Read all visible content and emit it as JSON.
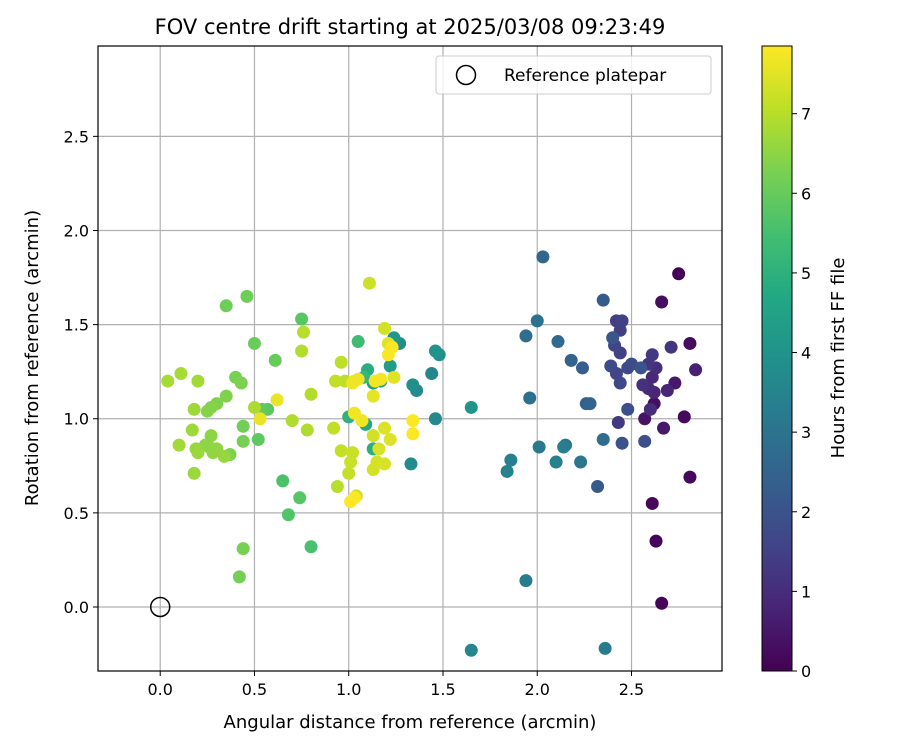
{
  "chart_data": {
    "type": "scatter",
    "title": "FOV centre drift starting at 2025/03/08 09:23:49",
    "xlabel": "Angular distance from reference (arcmin)",
    "ylabel": "Rotation from reference (arcmin)",
    "xlim": [
      -0.33,
      2.98
    ],
    "ylim": [
      -0.34,
      2.98
    ],
    "xticks": [
      0.0,
      0.5,
      1.0,
      1.5,
      2.0,
      2.5
    ],
    "xtick_labels": [
      "0.0",
      "0.5",
      "1.0",
      "1.5",
      "2.0",
      "2.5"
    ],
    "yticks": [
      0.0,
      0.5,
      1.0,
      1.5,
      2.0,
      2.5
    ],
    "ytick_labels": [
      "0.0",
      "0.5",
      "1.0",
      "1.5",
      "2.0",
      "2.5"
    ],
    "grid": true,
    "legend": {
      "position": "top-right",
      "label": "Reference platepar"
    },
    "reference_point": {
      "x": 0.0,
      "y": 0.0
    },
    "colorbar": {
      "label": "Hours from first FF file",
      "range": [
        0,
        7.85
      ],
      "ticks": [
        0,
        1,
        2,
        3,
        4,
        5,
        6,
        7
      ],
      "tick_labels": [
        "0",
        "1",
        "2",
        "3",
        "4",
        "5",
        "6",
        "7"
      ],
      "colormap": "viridis"
    },
    "points": [
      [
        2.75,
        1.77,
        0.05
      ],
      [
        2.63,
        0.35,
        0.1
      ],
      [
        2.66,
        0.02,
        0.1
      ],
      [
        2.61,
        0.55,
        0.15
      ],
      [
        2.81,
        0.69,
        0.15
      ],
      [
        2.78,
        1.01,
        0.2
      ],
      [
        2.81,
        1.4,
        0.25
      ],
      [
        2.66,
        1.62,
        0.3
      ],
      [
        2.62,
        1.08,
        0.3
      ],
      [
        2.57,
        1.0,
        0.4
      ],
      [
        2.73,
        1.19,
        0.5
      ],
      [
        2.67,
        0.95,
        0.5
      ],
      [
        2.84,
        1.26,
        0.7
      ],
      [
        2.69,
        1.15,
        0.8
      ],
      [
        2.62,
        1.14,
        0.8
      ],
      [
        2.61,
        1.22,
        0.9
      ],
      [
        2.59,
        1.16,
        0.9
      ],
      [
        2.6,
        1.05,
        1.0
      ],
      [
        2.63,
        1.27,
        1.0
      ],
      [
        2.56,
        1.18,
        1.1
      ],
      [
        2.59,
        1.29,
        1.2
      ],
      [
        2.71,
        1.38,
        1.2
      ],
      [
        2.61,
        1.34,
        1.3
      ],
      [
        2.43,
        0.98,
        1.3
      ],
      [
        2.42,
        1.52,
        1.4
      ],
      [
        2.44,
        1.47,
        1.45
      ],
      [
        2.45,
        1.52,
        1.5
      ],
      [
        2.44,
        1.35,
        1.5
      ],
      [
        2.41,
        1.39,
        1.6
      ],
      [
        2.42,
        1.24,
        1.6
      ],
      [
        2.44,
        1.19,
        1.7
      ],
      [
        2.48,
        1.27,
        1.7
      ],
      [
        2.5,
        1.29,
        1.8
      ],
      [
        2.39,
        1.28,
        1.8
      ],
      [
        2.48,
        1.05,
        1.9
      ],
      [
        2.57,
        0.88,
        1.9
      ],
      [
        2.55,
        1.27,
        2.0
      ],
      [
        2.45,
        0.87,
        2.0
      ],
      [
        2.4,
        1.43,
        2.1
      ],
      [
        2.35,
        1.63,
        2.2
      ],
      [
        2.32,
        0.64,
        2.2
      ],
      [
        2.24,
        1.27,
        2.3
      ],
      [
        2.26,
        1.08,
        2.4
      ],
      [
        2.28,
        1.08,
        2.5
      ],
      [
        2.18,
        1.31,
        2.5
      ],
      [
        2.03,
        1.86,
        2.6
      ],
      [
        2.11,
        1.41,
        2.7
      ],
      [
        1.94,
        1.44,
        2.8
      ],
      [
        2.35,
        0.89,
        2.8
      ],
      [
        1.96,
        1.11,
        2.9
      ],
      [
        2.0,
        1.52,
        3.0
      ],
      [
        2.15,
        0.86,
        3.05
      ],
      [
        2.23,
        0.77,
        3.1
      ],
      [
        2.01,
        0.85,
        3.15
      ],
      [
        2.36,
        -0.22,
        3.2
      ],
      [
        1.94,
        0.14,
        3.25
      ],
      [
        2.14,
        0.85,
        3.3
      ],
      [
        1.86,
        0.78,
        3.35
      ],
      [
        2.1,
        0.77,
        3.4
      ],
      [
        1.84,
        0.72,
        3.5
      ],
      [
        1.65,
        -0.23,
        3.6
      ],
      [
        1.44,
        1.24,
        3.6
      ],
      [
        1.46,
        1.0,
        3.65
      ],
      [
        1.36,
        1.15,
        3.7
      ],
      [
        1.33,
        0.76,
        3.75
      ],
      [
        1.27,
        1.4,
        3.8
      ],
      [
        1.34,
        1.18,
        3.85
      ],
      [
        1.48,
        1.34,
        3.9
      ],
      [
        1.46,
        1.36,
        3.95
      ],
      [
        1.65,
        1.06,
        4.0
      ],
      [
        1.24,
        1.43,
        4.1
      ],
      [
        1.22,
        1.28,
        4.3
      ],
      [
        1.13,
        1.19,
        4.4
      ],
      [
        1.17,
        1.2,
        4.55
      ],
      [
        1.09,
        0.97,
        4.7
      ],
      [
        1.1,
        1.26,
        4.85
      ],
      [
        1.13,
        0.84,
        4.9
      ],
      [
        1.0,
        1.01,
        5.0
      ],
      [
        1.08,
        1.22,
        5.2
      ],
      [
        1.05,
        1.41,
        5.4
      ],
      [
        0.8,
        0.32,
        5.55
      ],
      [
        0.65,
        0.67,
        5.6
      ],
      [
        0.68,
        0.49,
        5.7
      ],
      [
        0.74,
        0.58,
        5.75
      ],
      [
        0.75,
        1.53,
        5.8
      ],
      [
        0.57,
        1.05,
        5.85
      ],
      [
        0.52,
        0.89,
        5.9
      ],
      [
        0.54,
        1.05,
        5.95
      ],
      [
        0.61,
        1.31,
        6.0
      ],
      [
        0.5,
        1.4,
        6.05
      ],
      [
        0.46,
        1.65,
        6.1
      ],
      [
        0.35,
        1.6,
        6.1
      ],
      [
        0.44,
        0.96,
        6.15
      ],
      [
        0.44,
        0.88,
        6.2
      ],
      [
        0.42,
        0.16,
        6.2
      ],
      [
        0.44,
        0.31,
        6.25
      ],
      [
        0.4,
        1.22,
        6.25
      ],
      [
        0.43,
        1.19,
        6.3
      ],
      [
        0.37,
        0.81,
        6.3
      ],
      [
        0.35,
        1.12,
        6.35
      ],
      [
        0.3,
        1.08,
        6.35
      ],
      [
        0.27,
        1.06,
        6.4
      ],
      [
        0.25,
        1.04,
        6.4
      ],
      [
        0.24,
        0.86,
        6.45
      ],
      [
        0.26,
        0.85,
        6.45
      ],
      [
        0.24,
        0.86,
        6.5
      ],
      [
        0.27,
        0.91,
        6.5
      ],
      [
        0.3,
        0.84,
        6.55
      ],
      [
        0.28,
        0.82,
        6.55
      ],
      [
        0.34,
        0.8,
        6.6
      ],
      [
        0.19,
        0.84,
        6.6
      ],
      [
        0.2,
        0.82,
        6.65
      ],
      [
        0.18,
        0.71,
        6.65
      ],
      [
        0.17,
        0.94,
        6.7
      ],
      [
        0.18,
        1.05,
        6.7
      ],
      [
        0.1,
        0.86,
        6.75
      ],
      [
        0.2,
        1.2,
        6.75
      ],
      [
        0.04,
        1.2,
        6.8
      ],
      [
        0.11,
        1.24,
        6.8
      ],
      [
        0.5,
        1.06,
        6.85
      ],
      [
        0.7,
        0.99,
        6.9
      ],
      [
        0.78,
        0.94,
        6.9
      ],
      [
        0.8,
        1.13,
        6.95
      ],
      [
        0.75,
        1.36,
        6.95
      ],
      [
        0.76,
        1.46,
        7.0
      ],
      [
        0.94,
        0.64,
        7.0
      ],
      [
        0.96,
        1.3,
        7.05
      ],
      [
        0.98,
        1.2,
        7.05
      ],
      [
        0.93,
        1.2,
        7.1
      ],
      [
        0.92,
        0.95,
        7.1
      ],
      [
        0.96,
        0.83,
        7.15
      ],
      [
        1.0,
        0.71,
        7.15
      ],
      [
        1.01,
        0.77,
        7.2
      ],
      [
        1.02,
        0.82,
        7.2
      ],
      [
        1.04,
        0.59,
        7.25
      ],
      [
        1.11,
        1.72,
        7.25
      ],
      [
        1.19,
        1.48,
        7.3
      ],
      [
        1.13,
        0.91,
        7.3
      ],
      [
        1.15,
        0.77,
        7.35
      ],
      [
        1.13,
        0.73,
        7.35
      ],
      [
        1.16,
        0.84,
        7.4
      ],
      [
        1.19,
        0.76,
        7.4
      ],
      [
        1.19,
        0.95,
        7.45
      ],
      [
        1.22,
        0.89,
        7.45
      ],
      [
        1.21,
        1.4,
        7.5
      ],
      [
        1.24,
        1.22,
        7.5
      ],
      [
        1.03,
        1.2,
        7.55
      ],
      [
        1.13,
        1.12,
        7.55
      ],
      [
        0.62,
        1.1,
        7.6
      ],
      [
        0.53,
        1.0,
        7.6
      ],
      [
        1.02,
        1.19,
        7.65
      ],
      [
        1.05,
        1.21,
        7.65
      ],
      [
        1.07,
        0.99,
        7.7
      ],
      [
        1.03,
        1.03,
        7.7
      ],
      [
        1.14,
        1.2,
        7.75
      ],
      [
        1.17,
        1.21,
        7.75
      ],
      [
        1.21,
        1.34,
        7.8
      ],
      [
        1.23,
        1.38,
        7.8
      ],
      [
        1.34,
        0.92,
        7.82
      ],
      [
        1.34,
        0.99,
        7.82
      ],
      [
        1.01,
        0.56,
        7.84
      ],
      [
        1.03,
        0.58,
        7.84
      ]
    ]
  }
}
